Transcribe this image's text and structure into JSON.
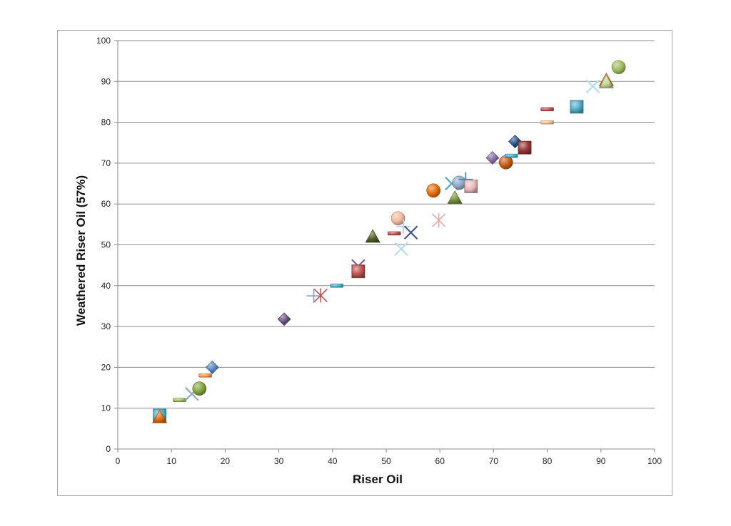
{
  "chart_data": {
    "type": "scatter",
    "title": "",
    "xlabel": "Riser Oil",
    "ylabel": "Weathered Riser Oil (57%)",
    "xlim": [
      0,
      100
    ],
    "ylim": [
      0,
      100
    ],
    "x_ticks": [
      0,
      10,
      20,
      30,
      40,
      50,
      60,
      70,
      80,
      90,
      100
    ],
    "y_ticks": [
      0,
      10,
      20,
      30,
      40,
      50,
      60,
      70,
      80,
      90,
      100
    ],
    "grid": "horizontal",
    "legend": "none",
    "points": [
      {
        "x": 7.8,
        "y": 8.2,
        "marker": "square",
        "color": "#4bacc6"
      },
      {
        "x": 7.8,
        "y": 7.8,
        "marker": "triangle",
        "color": "#e36c09"
      },
      {
        "x": 11.5,
        "y": 12,
        "marker": "dash",
        "color": "#9bbb59"
      },
      {
        "x": 13.8,
        "y": 13.5,
        "marker": "x",
        "color": "#8ea9c6"
      },
      {
        "x": 15.2,
        "y": 14.8,
        "marker": "circle",
        "color": "#7fa33a"
      },
      {
        "x": 16.3,
        "y": 18,
        "marker": "dash",
        "color": "#f79646"
      },
      {
        "x": 17.6,
        "y": 20,
        "marker": "diamond",
        "color": "#4f81bd"
      },
      {
        "x": 31,
        "y": 31.8,
        "marker": "diamond",
        "color": "#604a7b"
      },
      {
        "x": 36.5,
        "y": 37.5,
        "marker": "plus",
        "color": "#8ea9c6"
      },
      {
        "x": 37.8,
        "y": 37.6,
        "marker": "asterisk",
        "color": "#c0504d"
      },
      {
        "x": 40.8,
        "y": 40,
        "marker": "dash",
        "color": "#4bacc6"
      },
      {
        "x": 44.8,
        "y": 44.8,
        "marker": "x",
        "color": "#8064a2"
      },
      {
        "x": 44.8,
        "y": 43.5,
        "marker": "square",
        "color": "#c0504d"
      },
      {
        "x": 47.5,
        "y": 52,
        "marker": "triangle",
        "color": "#4f6228"
      },
      {
        "x": 51.5,
        "y": 52.8,
        "marker": "dash",
        "color": "#c0504d"
      },
      {
        "x": 52.2,
        "y": 56.5,
        "marker": "circle",
        "color": "#f2b8a0"
      },
      {
        "x": 52.8,
        "y": 49,
        "marker": "x",
        "color": "#b7dde8"
      },
      {
        "x": 53.2,
        "y": 54.5,
        "marker": "plus",
        "color": "#b9cde5"
      },
      {
        "x": 54.6,
        "y": 53,
        "marker": "x",
        "color": "#4a5a8a"
      },
      {
        "x": 58.8,
        "y": 63.3,
        "marker": "circle",
        "color": "#e36c09"
      },
      {
        "x": 59.8,
        "y": 56,
        "marker": "asterisk",
        "color": "#e6a9a6"
      },
      {
        "x": 62.2,
        "y": 65,
        "marker": "x",
        "color": "#4bacc6"
      },
      {
        "x": 62.8,
        "y": 61.5,
        "marker": "triangle",
        "color": "#77933c"
      },
      {
        "x": 63.6,
        "y": 65.2,
        "marker": "circle",
        "color": "#8ea9c6"
      },
      {
        "x": 64.8,
        "y": 66,
        "marker": "plus",
        "color": "#4f81bd"
      },
      {
        "x": 65.8,
        "y": 64.3,
        "marker": "square",
        "color": "#e6b9b8"
      },
      {
        "x": 69.8,
        "y": 71.3,
        "marker": "diamond",
        "color": "#8064a2"
      },
      {
        "x": 72.3,
        "y": 70.2,
        "marker": "circle",
        "color": "#c55a11"
      },
      {
        "x": 73.3,
        "y": 71.8,
        "marker": "dash",
        "color": "#4bacc6"
      },
      {
        "x": 74,
        "y": 75.3,
        "marker": "diamond",
        "color": "#1f497d"
      },
      {
        "x": 75.8,
        "y": 73.8,
        "marker": "square",
        "color": "#953735"
      },
      {
        "x": 80,
        "y": 83.2,
        "marker": "dash",
        "color": "#c0504d"
      },
      {
        "x": 80,
        "y": 80,
        "marker": "dash",
        "color": "#fac090"
      },
      {
        "x": 85.5,
        "y": 83.8,
        "marker": "square",
        "color": "#4bacc6"
      },
      {
        "x": 88.5,
        "y": 88.8,
        "marker": "x",
        "color": "#b7dde8"
      },
      {
        "x": 91,
        "y": 90.3,
        "marker": "triangle",
        "color": "#e36c09"
      },
      {
        "x": 91,
        "y": 89.8,
        "marker": "triangle",
        "color": "#c3d69b"
      },
      {
        "x": 93.3,
        "y": 93.5,
        "marker": "circle",
        "color": "#9bbb59"
      }
    ]
  }
}
